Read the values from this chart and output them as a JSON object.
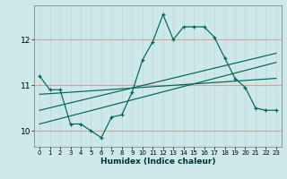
{
  "xlabel": "Humidex (Indice chaleur)",
  "bg_color": "#cce8e8",
  "grid_color_v": "#c0d8d8",
  "grid_color_h": "#d4a0a0",
  "line_color": "#006655",
  "xlim": [
    -0.5,
    23.5
  ],
  "ylim": [
    9.65,
    12.75
  ],
  "yticks": [
    10,
    11,
    12
  ],
  "xticks": [
    0,
    1,
    2,
    3,
    4,
    5,
    6,
    7,
    8,
    9,
    10,
    11,
    12,
    13,
    14,
    15,
    16,
    17,
    18,
    19,
    20,
    21,
    22,
    23
  ],
  "series_x": [
    0,
    1,
    2,
    3,
    4,
    5,
    6,
    7,
    8,
    9,
    10,
    11,
    12,
    13,
    14,
    15,
    16,
    17,
    18,
    19,
    20,
    21,
    22,
    23
  ],
  "series_y": [
    11.2,
    10.9,
    10.9,
    10.15,
    10.15,
    10.0,
    9.85,
    10.3,
    10.35,
    10.85,
    11.55,
    11.95,
    12.55,
    12.0,
    12.28,
    12.28,
    12.28,
    12.05,
    11.6,
    11.15,
    10.95,
    10.5,
    10.45,
    10.45
  ],
  "trend1_x": [
    0,
    23
  ],
  "trend1_y": [
    10.15,
    11.5
  ],
  "trend2_x": [
    0,
    23
  ],
  "trend2_y": [
    10.45,
    11.7
  ],
  "trend3_x": [
    0,
    23
  ],
  "trend3_y": [
    10.8,
    11.15
  ]
}
